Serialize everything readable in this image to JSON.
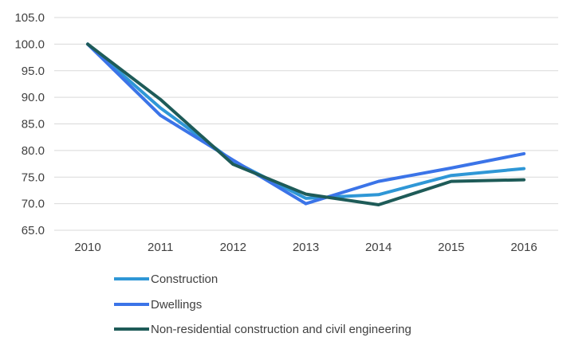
{
  "chart_data": {
    "type": "line",
    "x": [
      "2010",
      "2011",
      "2012",
      "2013",
      "2014",
      "2015",
      "2016"
    ],
    "ylim": [
      65.0,
      105.0
    ],
    "yticks": [
      "65.0",
      "70.0",
      "75.0",
      "80.0",
      "85.0",
      "90.0",
      "95.0",
      "100.0",
      "105.0"
    ],
    "grid": "horizontal",
    "legend_position": "bottom",
    "series": [
      {
        "name": "Construction",
        "color": "#2f97d6",
        "values": [
          100.0,
          88.0,
          78.0,
          71.0,
          71.7,
          75.3,
          76.6
        ]
      },
      {
        "name": "Dwellings",
        "color": "#3b74e8",
        "values": [
          100.0,
          86.6,
          78.2,
          70.0,
          74.2,
          76.7,
          79.4
        ]
      },
      {
        "name": "Non-residential construction and civil engineering",
        "color": "#1e5b58",
        "values": [
          100.0,
          89.6,
          77.4,
          71.8,
          69.8,
          74.2,
          74.5
        ]
      }
    ]
  }
}
